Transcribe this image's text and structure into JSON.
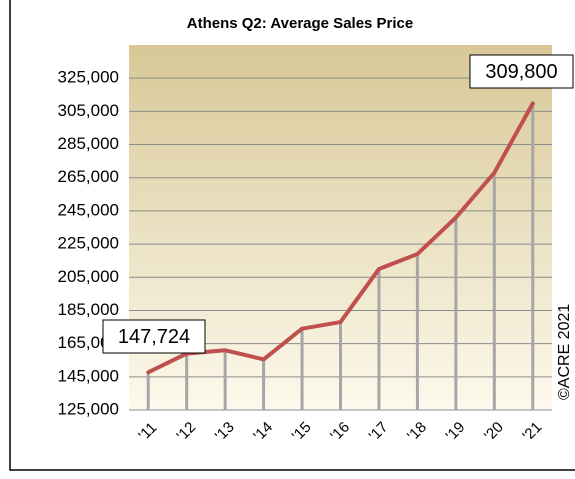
{
  "chart_data": {
    "type": "line",
    "title": "Athens Q2: Average Sales Price",
    "categories": [
      "'11",
      "'12",
      "'13",
      "'14",
      "'15",
      "'16",
      "'17",
      "'18",
      "'19",
      "'20",
      "'21"
    ],
    "values": [
      147724,
      159000,
      161000,
      155500,
      174000,
      178000,
      210000,
      219000,
      241000,
      268000,
      309800
    ],
    "value_labels": [
      "147,724",
      null,
      null,
      null,
      null,
      null,
      null,
      null,
      null,
      null,
      "309,800"
    ],
    "color": "#c0504d",
    "ylim": [
      125000,
      345000
    ],
    "yticks": [
      {
        "value": 125000,
        "label": "125,000"
      },
      {
        "value": 145000,
        "label": "145,000"
      },
      {
        "value": 165000,
        "label": "165,000"
      },
      {
        "value": 185000,
        "label": "185,000"
      },
      {
        "value": 205000,
        "label": "205,000"
      },
      {
        "value": 225000,
        "label": "225,000"
      },
      {
        "value": 245000,
        "label": "245,000"
      },
      {
        "value": 265000,
        "label": "265,000"
      },
      {
        "value": 285000,
        "label": "285,000"
      },
      {
        "value": 305000,
        "label": "305,000"
      },
      {
        "value": 325000,
        "label": "325,000"
      }
    ],
    "grid": true,
    "credit": "©ACRE 2021"
  }
}
